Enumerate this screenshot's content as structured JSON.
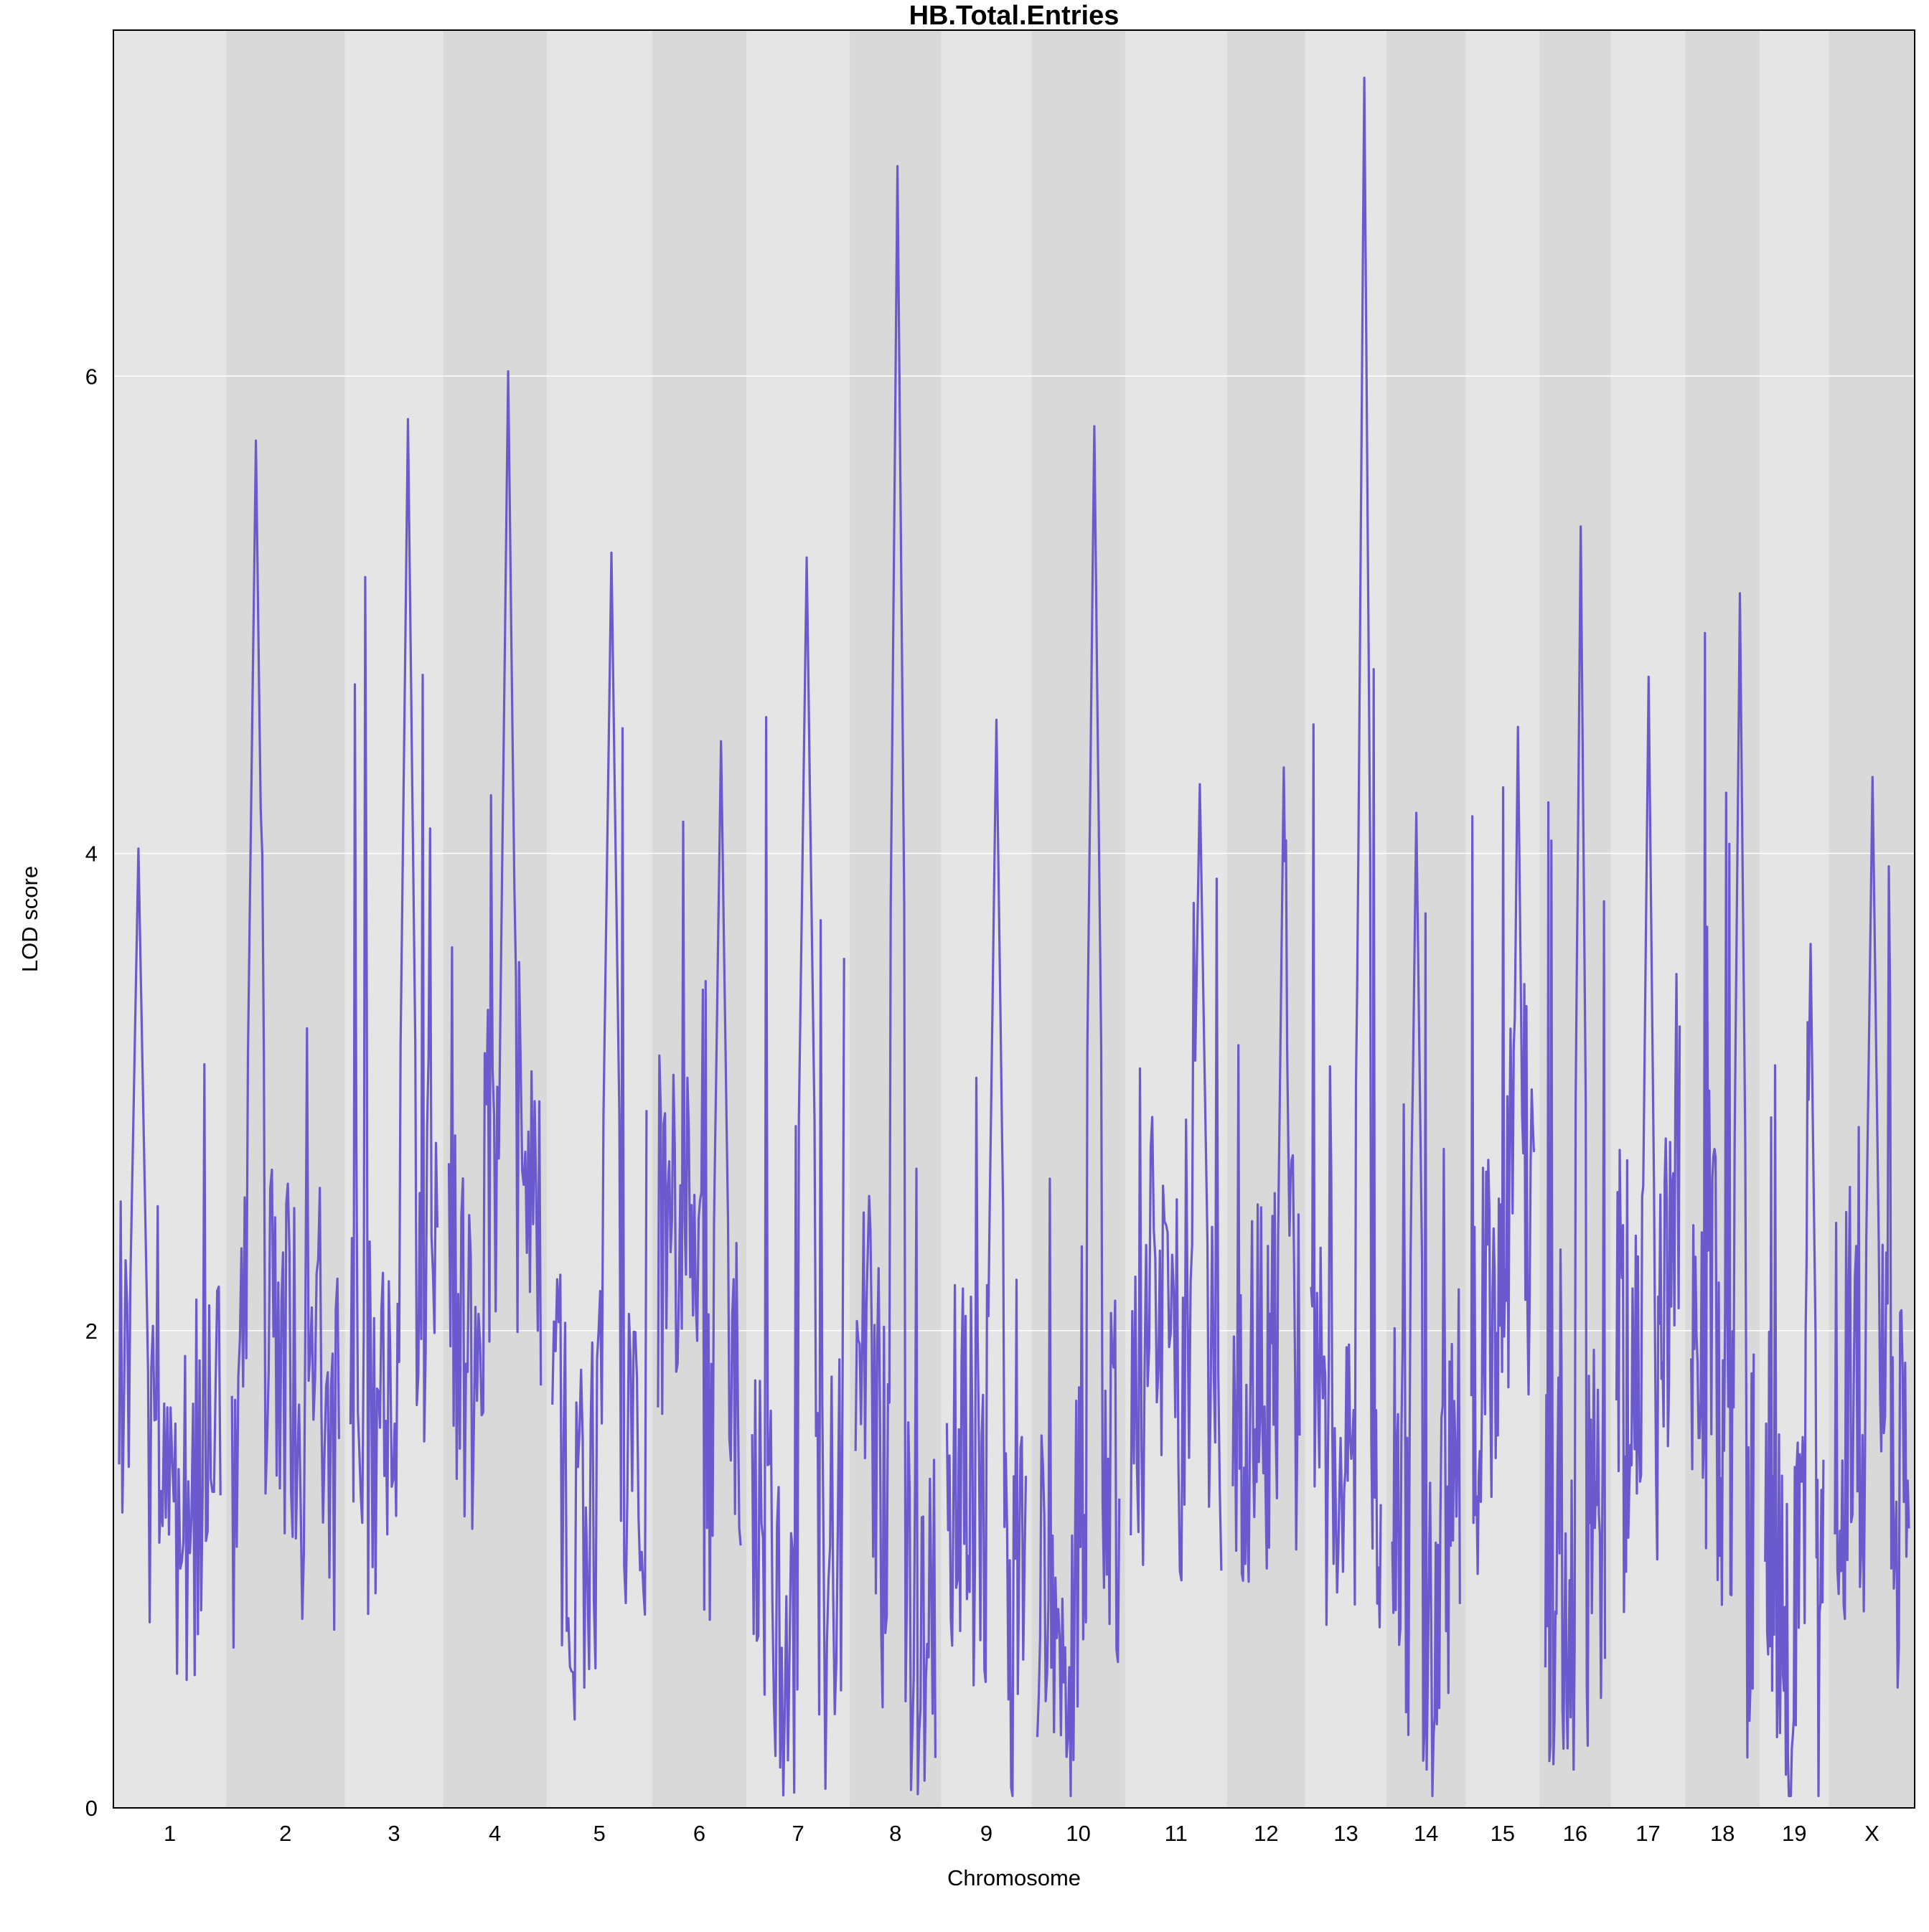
{
  "chart_data": {
    "type": "line",
    "title": "HB.Total.Entries",
    "xlabel": "Chromosome",
    "ylabel": "LOD score",
    "ylim": [
      0,
      7.45
    ],
    "y_ticks": [
      0,
      2,
      4,
      6
    ],
    "grid": true,
    "legend": "none",
    "colors": {
      "line": "#6a5acd",
      "panel_light": "#e5e5e5",
      "panel_dark": "#d9d9d9",
      "gridline": "#ffffff",
      "frame": "#000000"
    },
    "chromosomes": [
      {
        "label": "1",
        "peak": 4.02
      },
      {
        "label": "2",
        "peak": 5.73
      },
      {
        "label": "3",
        "peak": 5.82
      },
      {
        "label": "4",
        "peak": 6.02
      },
      {
        "label": "5",
        "peak": 5.26
      },
      {
        "label": "6",
        "peak": 4.47
      },
      {
        "label": "7",
        "peak": 5.24
      },
      {
        "label": "8",
        "peak": 6.88
      },
      {
        "label": "9",
        "peak": 4.56
      },
      {
        "label": "10",
        "peak": 5.79
      },
      {
        "label": "11",
        "peak": 4.29
      },
      {
        "label": "12",
        "peak": 4.36
      },
      {
        "label": "13",
        "peak": 7.25
      },
      {
        "label": "14",
        "peak": 4.17
      },
      {
        "label": "15",
        "peak": 4.53
      },
      {
        "label": "16",
        "peak": 5.37
      },
      {
        "label": "17",
        "peak": 4.74
      },
      {
        "label": "18",
        "peak": 5.09
      },
      {
        "label": "19",
        "peak": 3.62
      },
      {
        "label": "X",
        "peak": 4.32
      }
    ]
  }
}
